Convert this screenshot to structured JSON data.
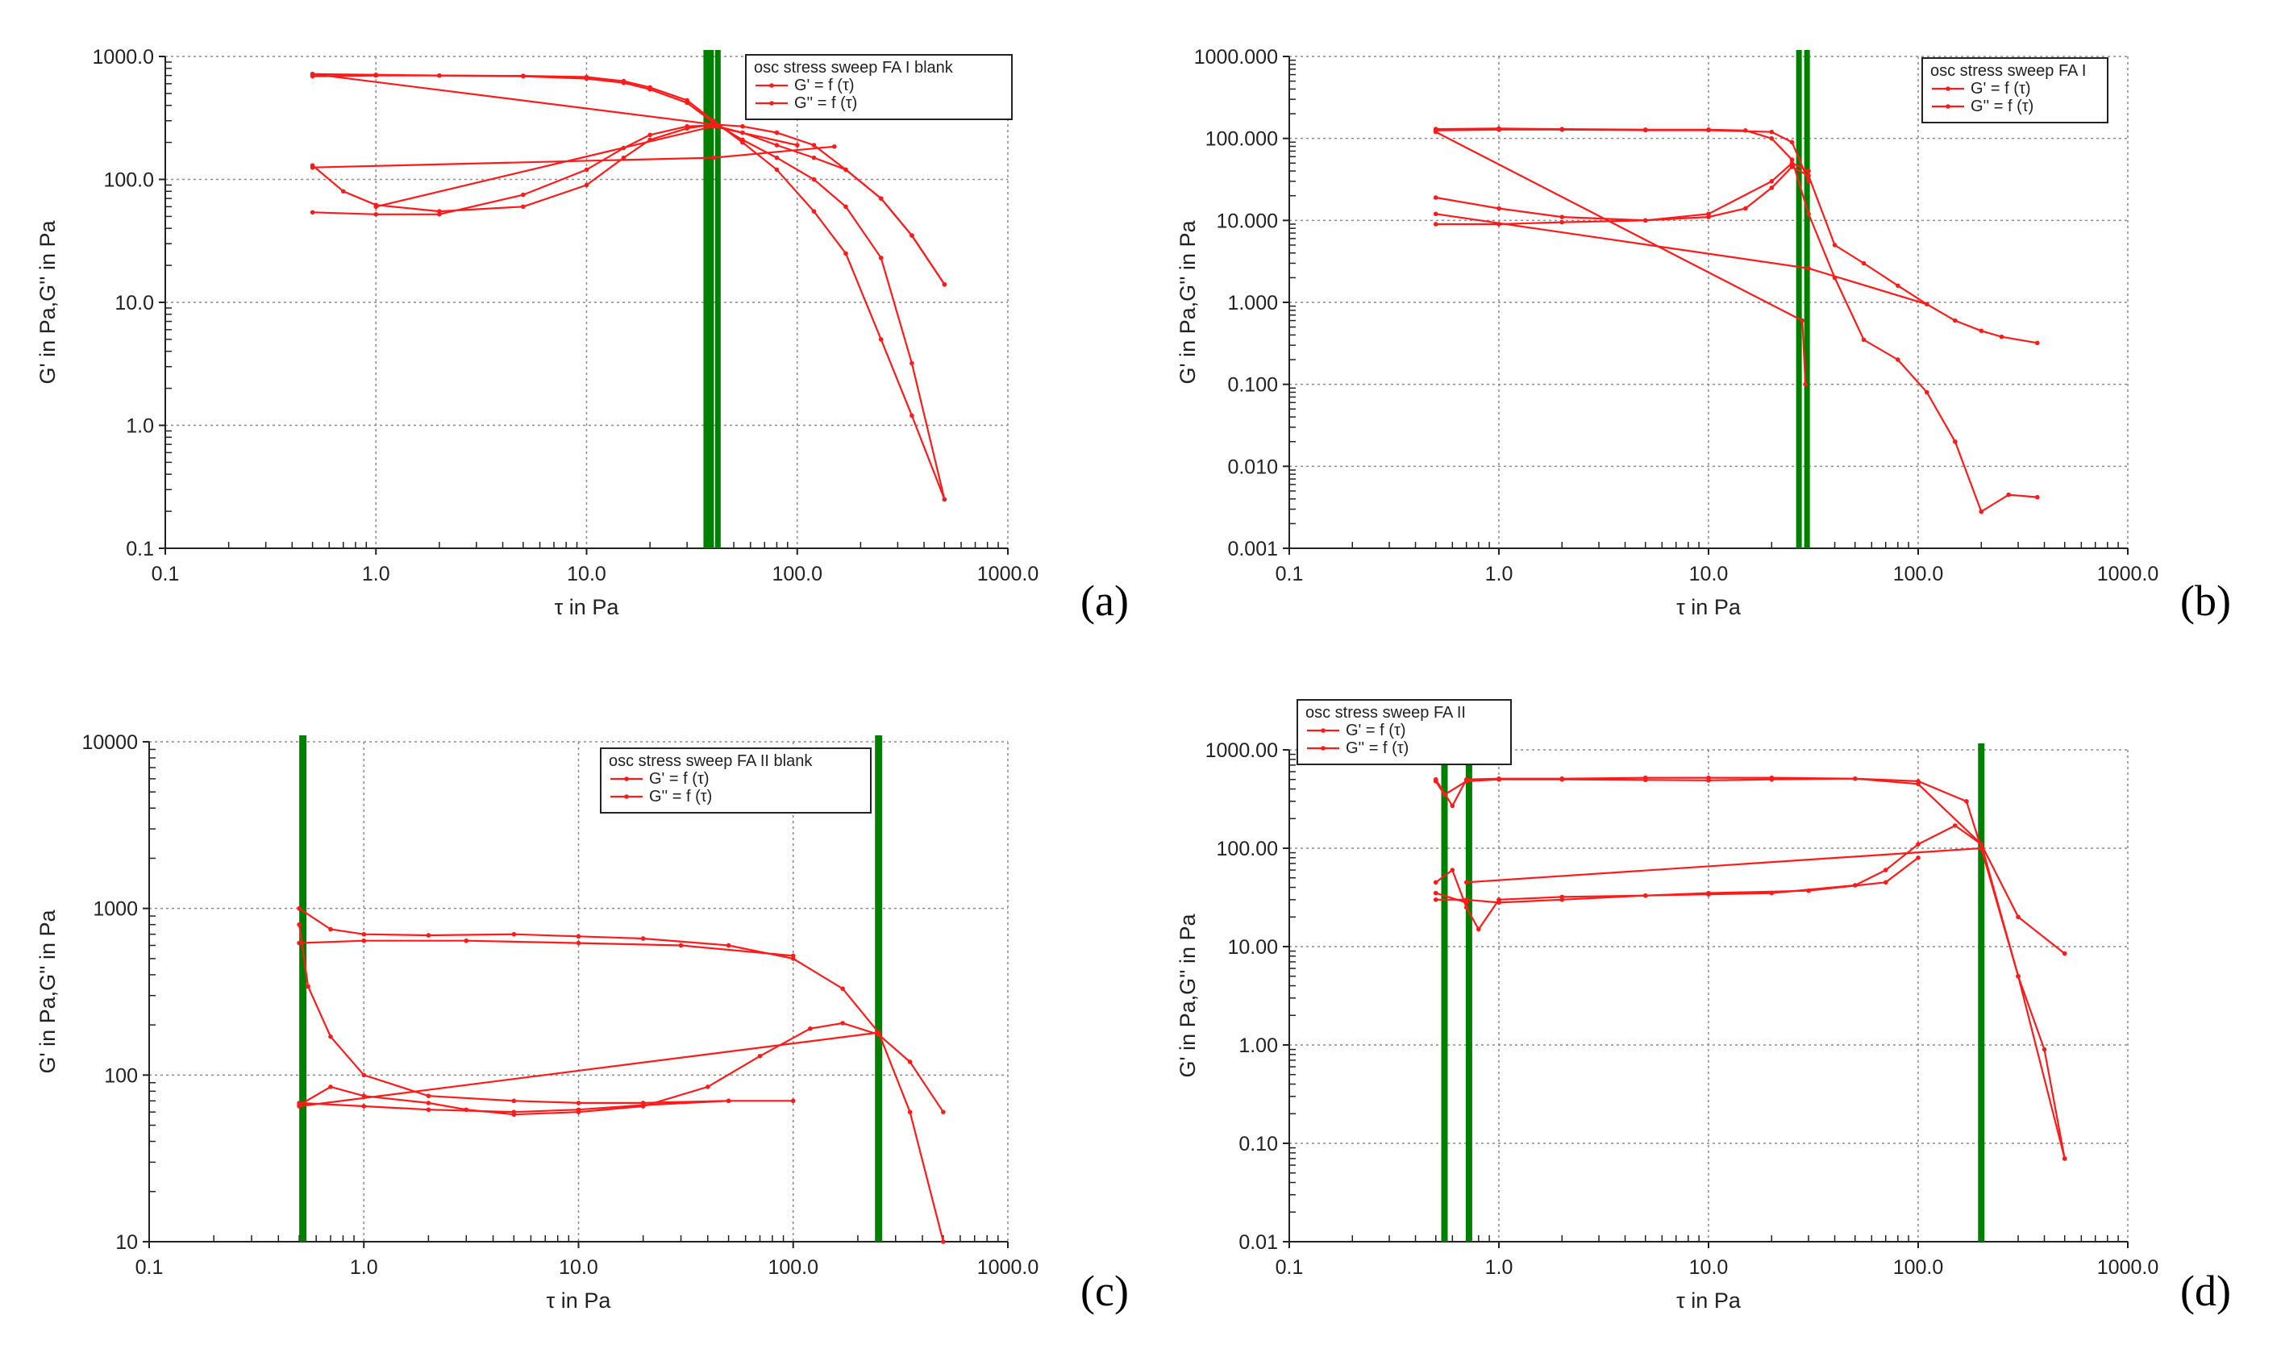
{
  "colors": {
    "series": "#ff1a1a",
    "marker_line": "#008000",
    "grid": "#8a8a8a",
    "axis": "#222222"
  },
  "chart_data": [
    {
      "id": "a",
      "panel_label": "(a)",
      "type": "line",
      "xscale": "log",
      "yscale": "log",
      "xlim": [
        0.1,
        1000
      ],
      "ylim": [
        0.1,
        1000
      ],
      "xticks": [
        0.1,
        1,
        10,
        100,
        1000
      ],
      "xtick_labels": [
        "0.1",
        "1.0",
        "10.0",
        "100.0",
        "1000.0"
      ],
      "yticks": [
        0.1,
        1,
        10,
        100,
        1000
      ],
      "ytick_labels": [
        "0.1",
        "1.0",
        "10.0",
        "100.0",
        "1000.0"
      ],
      "xlabel": "τ in Pa",
      "ylabel": "G' in Pa,G'' in Pa",
      "legend": {
        "title": "osc stress sweep FA I blank",
        "entries": [
          "G' = f (τ)",
          "G'' = f (τ)"
        ],
        "placement": "top-right"
      },
      "vlines": [
        37,
        39,
        42
      ],
      "series": [
        {
          "name": "G' = f (τ)",
          "x": [
            0.5,
            1,
            2,
            5,
            10,
            15,
            20,
            30,
            40,
            55,
            80,
            120,
            170,
            250,
            350,
            500
          ],
          "y": [
            720,
            710,
            700,
            695,
            680,
            630,
            560,
            440,
            300,
            200,
            120,
            55,
            25,
            5,
            1.2,
            0.25
          ]
        },
        {
          "name": "G' return",
          "x": [
            500,
            350,
            250,
            170,
            120,
            80,
            55,
            40,
            30,
            20,
            15,
            10,
            5,
            2,
            1,
            0.5
          ],
          "y": [
            0.25,
            3.2,
            23,
            60,
            100,
            150,
            210,
            290,
            420,
            540,
            610,
            660,
            690,
            700,
            700,
            690
          ]
        },
        {
          "name": "G' connector",
          "x": [
            0.5,
            40
          ],
          "y": [
            720,
            280
          ]
        },
        {
          "name": "G'' = f (τ)",
          "x": [
            0.5,
            0.7,
            1,
            2,
            5,
            10,
            15,
            20,
            30,
            40,
            55,
            80,
            120,
            170,
            250,
            350,
            500
          ],
          "y": [
            130,
            80,
            62,
            55,
            60,
            90,
            150,
            210,
            260,
            280,
            270,
            240,
            190,
            120,
            70,
            35,
            14
          ]
        },
        {
          "name": "G'' return",
          "x": [
            500,
            350,
            250,
            170,
            120,
            80,
            55,
            40,
            30,
            20,
            15,
            10,
            5,
            2,
            1,
            0.5
          ],
          "y": [
            14,
            35,
            70,
            120,
            150,
            190,
            240,
            275,
            270,
            230,
            180,
            120,
            75,
            52,
            52,
            54
          ]
        },
        {
          "name": "G'' connector",
          "x": [
            0.5,
            40,
            150
          ],
          "y": [
            125,
            150,
            185
          ]
        },
        {
          "name": "G'' connector 2",
          "x": [
            1,
            40,
            100
          ],
          "y": [
            60,
            270,
            190
          ]
        }
      ]
    },
    {
      "id": "b",
      "panel_label": "(b)",
      "type": "line",
      "xscale": "log",
      "yscale": "log",
      "xlim": [
        0.1,
        1000
      ],
      "ylim": [
        0.001,
        1000
      ],
      "xticks": [
        0.1,
        1,
        10,
        100,
        1000
      ],
      "xtick_labels": [
        "0.1",
        "1.0",
        "10.0",
        "100.0",
        "1000.0"
      ],
      "yticks": [
        0.001,
        0.01,
        0.1,
        1,
        10,
        100,
        1000
      ],
      "ytick_labels": [
        "0.001",
        "0.010",
        "0.100",
        "1.000",
        "10.000",
        "100.000",
        "1000.000"
      ],
      "xlabel": "τ in Pa",
      "ylabel": "G' in Pa,G'' in Pa",
      "legend": {
        "title": "osc stress sweep FA I",
        "entries": [
          "G' = f (τ)",
          "G'' = f (τ)"
        ],
        "placement": "top-right"
      },
      "vlines": [
        27,
        29.5
      ],
      "series": [
        {
          "name": "G' = f (τ)",
          "x": [
            0.5,
            1,
            2,
            5,
            10,
            15,
            20,
            25,
            30,
            40,
            55,
            80,
            110,
            150,
            200
          ],
          "y": [
            130,
            132,
            130,
            128,
            128,
            125,
            100,
            55,
            12,
            2,
            0.35,
            0.2,
            0.08,
            0.02,
            0.0028
          ]
        },
        {
          "name": "G' return",
          "x": [
            200,
            270,
            370
          ],
          "y": [
            0.0028,
            0.0045,
            0.0042
          ]
        },
        {
          "name": "G' back",
          "x": [
            30,
            25,
            20,
            10,
            5,
            2,
            1,
            0.5
          ],
          "y": [
            30,
            90,
            120,
            126,
            126,
            128,
            128,
            125
          ]
        },
        {
          "name": "G' connector",
          "x": [
            0.5,
            28,
            29
          ],
          "y": [
            120,
            0.6,
            0.1
          ]
        },
        {
          "name": "G'' = f (τ)",
          "x": [
            0.5,
            1,
            2,
            5,
            10,
            15,
            20,
            25,
            30,
            40,
            55,
            80,
            110,
            150,
            200,
            250,
            370
          ],
          "y": [
            19,
            14,
            11,
            10,
            11,
            14,
            25,
            45,
            35,
            5,
            3,
            1.6,
            0.95,
            0.6,
            0.45,
            0.38,
            0.32
          ]
        },
        {
          "name": "G'' return",
          "x": [
            30,
            25,
            20,
            10,
            5,
            2,
            1,
            0.5
          ],
          "y": [
            40,
            50,
            30,
            12,
            10,
            9.5,
            9,
            9
          ]
        },
        {
          "name": "G'' connector",
          "x": [
            0.5,
            30,
            110
          ],
          "y": [
            12,
            2.6,
            0.95
          ]
        }
      ]
    },
    {
      "id": "c",
      "panel_label": "(c)",
      "type": "line",
      "xscale": "log",
      "yscale": "log",
      "xlim": [
        0.1,
        1000
      ],
      "ylim": [
        10,
        10000
      ],
      "xticks": [
        0.1,
        1,
        10,
        100,
        1000
      ],
      "xtick_labels": [
        "0.1",
        "1.0",
        "10.0",
        "100.0",
        "1000.0"
      ],
      "yticks": [
        10,
        100,
        1000,
        10000
      ],
      "ytick_labels": [
        "10",
        "100",
        "1000",
        "10000"
      ],
      "xlabel": "τ in Pa",
      "ylabel": "G' in Pa,G'' in Pa",
      "legend": {
        "title": "osc stress sweep FA II blank",
        "entries": [
          "G' = f (τ)",
          "G'' = f (τ)"
        ],
        "placement": "top-right"
      },
      "vlines": [
        0.52,
        250
      ],
      "series": [
        {
          "name": "G' = f (τ)",
          "x": [
            0.5,
            0.7,
            1,
            2,
            5,
            10,
            20,
            50,
            100,
            170,
            250,
            350,
            500
          ],
          "y": [
            1000,
            750,
            700,
            690,
            700,
            680,
            660,
            600,
            500,
            330,
            180,
            60,
            10
          ]
        },
        {
          "name": "G' return",
          "x": [
            0.5,
            0.55,
            0.7,
            1,
            2,
            5,
            10,
            20,
            50,
            100
          ],
          "y": [
            800,
            340,
            170,
            100,
            75,
            70,
            68,
            68,
            70,
            70
          ]
        },
        {
          "name": "G' back",
          "x": [
            0.5,
            1,
            3,
            10,
            30,
            100
          ],
          "y": [
            620,
            640,
            640,
            620,
            600,
            520
          ]
        },
        {
          "name": "G'' = f (τ)",
          "x": [
            0.5,
            0.7,
            1,
            2,
            3,
            5,
            10,
            20,
            40,
            70,
            120,
            170,
            250,
            350,
            500
          ],
          "y": [
            66,
            85,
            75,
            68,
            62,
            58,
            60,
            65,
            85,
            130,
            190,
            205,
            175,
            120,
            60
          ]
        },
        {
          "name": "G'' return",
          "x": [
            0.5,
            1,
            2,
            5,
            10,
            20,
            50
          ],
          "y": [
            68,
            65,
            62,
            60,
            62,
            66,
            70
          ]
        },
        {
          "name": "G'' connector",
          "x": [
            0.5,
            250
          ],
          "y": [
            65,
            180
          ]
        }
      ]
    },
    {
      "id": "d",
      "panel_label": "(d)",
      "type": "line",
      "xscale": "log",
      "yscale": "log",
      "xlim": [
        0.1,
        1000
      ],
      "ylim": [
        0.01,
        1000
      ],
      "xticks": [
        0.1,
        1,
        10,
        100,
        1000
      ],
      "xtick_labels": [
        "0.1",
        "1.0",
        "10.0",
        "100.0",
        "1000.0"
      ],
      "yticks": [
        0.01,
        0.1,
        1,
        10,
        100,
        1000
      ],
      "ytick_labels": [
        "0.01",
        "0.10",
        "1.00",
        "10.00",
        "100.00",
        "1000.00"
      ],
      "xlabel": "τ in Pa",
      "ylabel": "G' in Pa,G'' in Pa",
      "legend": {
        "title": "osc stress sweep FA II",
        "entries": [
          "G' = f (τ)",
          "G'' = f (τ)"
        ],
        "placement": "top-left"
      },
      "vlines": [
        0.55,
        0.72,
        200
      ],
      "series": [
        {
          "name": "G' = f (τ)",
          "x": [
            0.5,
            0.6,
            0.7,
            1,
            2,
            5,
            10,
            20,
            50,
            100,
            170,
            200,
            300,
            400,
            500
          ],
          "y": [
            500,
            270,
            500,
            510,
            510,
            520,
            520,
            520,
            510,
            480,
            300,
            100,
            5,
            0.9,
            0.07
          ]
        },
        {
          "name": "G' return",
          "x": [
            500,
            300,
            200,
            100,
            50,
            20,
            10,
            5,
            2,
            1,
            0.7,
            0.55,
            0.5
          ],
          "y": [
            0.07,
            5,
            110,
            450,
            510,
            500,
            490,
            495,
            500,
            500,
            480,
            350,
            480
          ]
        },
        {
          "name": "G'' = f (τ)",
          "x": [
            0.5,
            0.6,
            0.7,
            0.8,
            1,
            2,
            5,
            10,
            20,
            50,
            70,
            100,
            150,
            200,
            300,
            500
          ],
          "y": [
            45,
            60,
            25,
            15,
            30,
            32,
            33,
            34,
            35,
            42,
            60,
            110,
            170,
            110,
            20,
            8.5
          ]
        },
        {
          "name": "G'' return",
          "x": [
            0.5,
            0.7,
            1,
            2,
            5,
            10,
            30,
            70,
            100
          ],
          "y": [
            30,
            30,
            28,
            30,
            33,
            35,
            37,
            45,
            80
          ]
        },
        {
          "name": "G'' connector",
          "x": [
            0.7,
            200
          ],
          "y": [
            45,
            100
          ]
        },
        {
          "name": "G'' connector 2",
          "x": [
            0.5,
            0.7
          ],
          "y": [
            35,
            28
          ]
        }
      ]
    }
  ]
}
